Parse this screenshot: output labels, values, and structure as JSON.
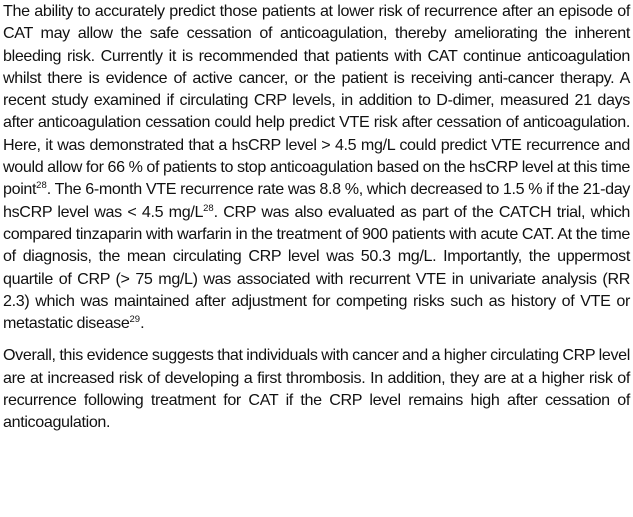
{
  "paragraphs": [
    {
      "segments": [
        {
          "t": "The ability to accurately predict those patients at lower risk of recurrence after an episode of CAT may allow the safe cessation of anticoagulation, thereby ameliorating the inherent bleeding risk. Currently it is recommended that patients with CAT continue anticoagulation whilst there is evidence of active cancer, or the patient is receiving anti-cancer therapy. A recent study examined if circulating CRP levels, in addition to D-dimer, measured 21 days after anticoagulation cessation could help predict VTE risk after cessation of anticoagulation. Here, it was demonstrated that a hsCRP level > 4.5 mg/L could predict VTE recurrence and would allow for 66 % of patients to stop anticoagulation based on the hsCRP level at this time point"
        },
        {
          "sup": "28"
        },
        {
          "t": ". The 6-month VTE recurrence rate was 8.8 %, which decreased to 1.5 % if the 21-day hsCRP level was < 4.5 mg/L"
        },
        {
          "sup": "28"
        },
        {
          "t": ". CRP was also evaluated as part of the CATCH trial, which compared tinzaparin with warfarin in the treatment of 900 patients with acute CAT. At the time of diagnosis, the mean circulating CRP level was 50.3 mg/L. Importantly, the uppermost quartile of CRP (> 75 mg/L) was associated with recurrent VTE in univariate analysis (RR 2.3) which was maintained after adjustment for competing risks such as history of VTE or metastatic disease"
        },
        {
          "sup": "29"
        },
        {
          "t": "."
        }
      ]
    },
    {
      "segments": [
        {
          "t": "Overall, this evidence suggests that individuals with cancer and a higher circulating CRP level are at increased risk of developing a first thrombosis. In addition, they are at a higher risk of recurrence following treatment for CAT if the CRP level remains high after cessation of anticoagulation."
        }
      ]
    }
  ]
}
